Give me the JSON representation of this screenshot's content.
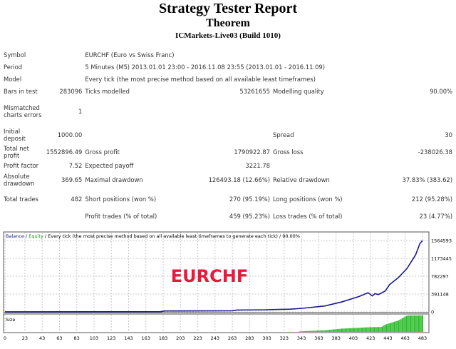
{
  "header": {
    "title": "Strategy Tester Report",
    "expert": "Theorem",
    "server": "ICMarkets-Live03 (Build 1010)"
  },
  "report": {
    "symbol_label": "Symbol",
    "symbol": "EURCHF (Euro vs Swiss Franc)",
    "period_label": "Period",
    "period": "5 Minutes (M5) 2013.01.01 23:00 - 2016.11.08 23:55 (2013.01.01 - 2016.11.09)",
    "model_label": "Model",
    "model": "Every tick (the most precise method based on all available least timeframes)",
    "bars_label": "Bars in test",
    "bars": "283096",
    "ticks_label": "Ticks modelled",
    "ticks": "53261655",
    "quality_label": "Modelling quality",
    "quality": "90.00%",
    "mismatch_label": "Mismatched charts errors",
    "mismatch": "1",
    "deposit_label": "Initial deposit",
    "deposit": "1000.00",
    "spread_label": "Spread",
    "spread": "30",
    "net_label": "Total net profit",
    "net": "1552896.49",
    "gross_profit_label": "Gross profit",
    "gross_profit": "1790922.87",
    "gross_loss_label": "Gross loss",
    "gross_loss": "-238026.38",
    "pf_label": "Profit factor",
    "pf": "7.52",
    "payoff_label": "Expected payoff",
    "payoff": "3221.78",
    "abs_dd_label": "Absolute drawdown",
    "abs_dd": "369.65",
    "max_dd_label": "Maximal drawdown",
    "max_dd": "126493.18 (12.66%)",
    "rel_dd_label": "Relative drawdown",
    "rel_dd": "37.83% (383.62)",
    "trades_label": "Total trades",
    "trades": "482",
    "short_label": "Short positions (won %)",
    "short": "270 (95.19%)",
    "long_label": "Long positions (won %)",
    "long": "212 (95.28%)",
    "ptrades_label": "Profit trades (% of total)",
    "ptrades": "459 (95.23%)",
    "ltrades_label": "Loss trades (% of total)",
    "ltrades": "23 (4.77%)"
  },
  "chart_data": {
    "type": "line",
    "legend": {
      "balance": "Balance",
      "sep1": " / ",
      "equity": "Equity",
      "rest": " / Every tick (the most precise method based on all available least timeframes to generate each tick) / 90.00%"
    },
    "watermark": "EURCHF",
    "size_label": "Size",
    "y_ticks": [
      "1564593",
      "1173445",
      "782297",
      "391148",
      "0"
    ],
    "y_tick_values": [
      1564593,
      1173445,
      782297,
      391148,
      0
    ],
    "x_ticks": [
      "0",
      "23",
      "43",
      "63",
      "83",
      "103",
      "123",
      "143",
      "163",
      "183",
      "203",
      "223",
      "243",
      "263",
      "283",
      "303",
      "323",
      "343",
      "363",
      "383",
      "403",
      "423",
      "443",
      "463",
      "483"
    ],
    "xlim": [
      0,
      483
    ],
    "ylim": [
      0,
      1564593
    ],
    "balance": [
      [
        0,
        1000
      ],
      [
        180,
        5000
      ],
      [
        185,
        20000
      ],
      [
        263,
        25000
      ],
      [
        268,
        40000
      ],
      [
        300,
        45000
      ],
      [
        330,
        60000
      ],
      [
        345,
        80000
      ],
      [
        370,
        130000
      ],
      [
        390,
        220000
      ],
      [
        410,
        340000
      ],
      [
        420,
        420000
      ],
      [
        425,
        350000
      ],
      [
        428,
        400000
      ],
      [
        432,
        380000
      ],
      [
        440,
        460000
      ],
      [
        445,
        600000
      ],
      [
        455,
        750000
      ],
      [
        465,
        950000
      ],
      [
        475,
        1250000
      ],
      [
        480,
        1500000
      ],
      [
        483,
        1564593
      ]
    ],
    "size_relative": [
      [
        340,
        0.03
      ],
      [
        370,
        0.1
      ],
      [
        390,
        0.2
      ],
      [
        420,
        0.28
      ],
      [
        435,
        0.3
      ],
      [
        440,
        0.45
      ],
      [
        455,
        0.7
      ],
      [
        463,
        0.95
      ],
      [
        466,
        1
      ],
      [
        483,
        1
      ]
    ],
    "colors": {
      "balance": "#1a1a8c",
      "equity": "#1a9a1a",
      "size": "#22bb22",
      "watermark": "#e8193c",
      "grid": "#c8c8c8"
    }
  }
}
